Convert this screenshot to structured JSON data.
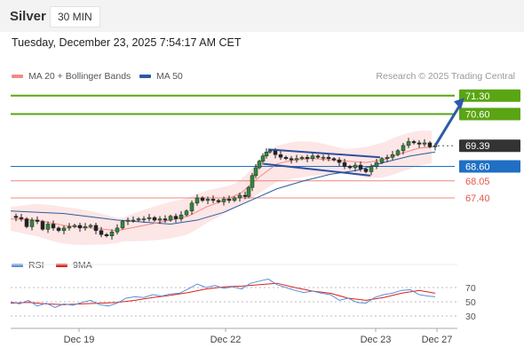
{
  "header": {
    "instrument": "Silver",
    "interval": "30 MIN",
    "datetime": "Tuesday, December 23, 2025 7:54:17 AM CET"
  },
  "legend": {
    "ma20": {
      "label": "MA 20 + Bollinger Bands",
      "color": "#f28b82"
    },
    "ma50": {
      "label": "MA 50",
      "color": "#2d5a9e"
    },
    "credit": "Research © 2025 Trading Central"
  },
  "rsi_legend": {
    "rsi": {
      "label": "RSI",
      "color": "#5b8dd9"
    },
    "ma9": {
      "label": "9MA",
      "color": "#d9221c"
    }
  },
  "chart_data": {
    "type": "line",
    "x_ticks": [
      "Dec 19",
      "Dec 22",
      "Dec 23",
      "Dec 27"
    ],
    "levels": [
      {
        "value": 71.3,
        "label": "71.30",
        "kind": "target",
        "color": "#5aa514"
      },
      {
        "value": 70.6,
        "label": "70.60",
        "kind": "target",
        "color": "#5aa514"
      },
      {
        "value": 69.39,
        "label": "69.39",
        "kind": "last",
        "color": "#333333"
      },
      {
        "value": 68.6,
        "label": "68.60",
        "kind": "pivot",
        "color": "#1f6fc4"
      },
      {
        "value": 68.05,
        "label": "68.05",
        "kind": "support",
        "color": "#e4574b"
      },
      {
        "value": 67.4,
        "label": "67.40",
        "kind": "support",
        "color": "#e4574b"
      }
    ],
    "price_range": [
      65.4,
      71.7
    ],
    "price_path": [
      [
        0,
        66.7
      ],
      [
        6,
        66.65
      ],
      [
        12,
        66.6
      ],
      [
        18,
        66.3
      ],
      [
        24,
        66.55
      ],
      [
        30,
        66.5
      ],
      [
        36,
        66.2
      ],
      [
        42,
        66.4
      ],
      [
        48,
        66.25
      ],
      [
        54,
        66.15
      ],
      [
        60,
        66.25
      ],
      [
        66,
        66.3
      ],
      [
        72,
        66.35
      ],
      [
        78,
        66.25
      ],
      [
        84,
        66.3
      ],
      [
        90,
        66.35
      ],
      [
        96,
        66.15
      ],
      [
        102,
        66.0
      ],
      [
        108,
        65.95
      ],
      [
        114,
        66.1
      ],
      [
        120,
        66.25
      ],
      [
        126,
        66.5
      ],
      [
        132,
        66.55
      ],
      [
        138,
        66.55
      ],
      [
        144,
        66.6
      ],
      [
        150,
        66.6
      ],
      [
        156,
        66.65
      ],
      [
        162,
        66.55
      ],
      [
        168,
        66.6
      ],
      [
        174,
        66.55
      ],
      [
        180,
        66.7
      ],
      [
        186,
        66.6
      ],
      [
        192,
        66.75
      ],
      [
        198,
        66.9
      ],
      [
        204,
        67.2
      ],
      [
        210,
        67.4
      ],
      [
        216,
        67.3
      ],
      [
        222,
        67.35
      ],
      [
        228,
        67.3
      ],
      [
        234,
        67.25
      ],
      [
        240,
        67.35
      ],
      [
        246,
        67.3
      ],
      [
        252,
        67.4
      ],
      [
        258,
        67.5
      ],
      [
        264,
        67.45
      ],
      [
        268,
        67.8
      ],
      [
        272,
        68.25
      ],
      [
        276,
        68.55
      ],
      [
        280,
        68.8
      ],
      [
        284,
        69.0
      ],
      [
        288,
        69.15
      ],
      [
        292,
        69.2
      ],
      [
        298,
        69.05
      ],
      [
        304,
        68.95
      ],
      [
        310,
        68.9
      ],
      [
        316,
        68.85
      ],
      [
        322,
        68.9
      ],
      [
        328,
        68.95
      ],
      [
        334,
        68.9
      ],
      [
        340,
        69.0
      ],
      [
        346,
        68.95
      ],
      [
        352,
        68.95
      ],
      [
        358,
        68.9
      ],
      [
        364,
        68.85
      ],
      [
        370,
        68.75
      ],
      [
        376,
        68.6
      ],
      [
        382,
        68.55
      ],
      [
        388,
        68.65
      ],
      [
        394,
        68.5
      ],
      [
        400,
        68.4
      ],
      [
        406,
        68.6
      ],
      [
        412,
        68.75
      ],
      [
        418,
        68.9
      ],
      [
        424,
        68.95
      ],
      [
        430,
        69.05
      ],
      [
        436,
        69.2
      ],
      [
        442,
        69.4
      ],
      [
        448,
        69.55
      ],
      [
        454,
        69.5
      ],
      [
        460,
        69.45
      ],
      [
        466,
        69.5
      ],
      [
        472,
        69.35
      ],
      [
        478,
        69.39
      ]
    ],
    "projection": [
      [
        478,
        69.39
      ],
      [
        510,
        71.15
      ]
    ],
    "ma50_path": [
      [
        0,
        66.9
      ],
      [
        60,
        66.8
      ],
      [
        120,
        66.55
      ],
      [
        180,
        66.4
      ],
      [
        210,
        66.55
      ],
      [
        240,
        66.85
      ],
      [
        270,
        67.3
      ],
      [
        300,
        67.75
      ],
      [
        330,
        68.05
      ],
      [
        360,
        68.3
      ],
      [
        390,
        68.45
      ],
      [
        420,
        68.75
      ],
      [
        450,
        69.0
      ],
      [
        478,
        69.15
      ]
    ],
    "ma20_path": [
      [
        0,
        66.6
      ],
      [
        30,
        66.55
      ],
      [
        60,
        66.35
      ],
      [
        90,
        66.25
      ],
      [
        120,
        66.15
      ],
      [
        150,
        66.35
      ],
      [
        180,
        66.55
      ],
      [
        200,
        66.7
      ],
      [
        220,
        67.05
      ],
      [
        240,
        67.3
      ],
      [
        260,
        67.6
      ],
      [
        280,
        68.2
      ],
      [
        300,
        68.7
      ],
      [
        320,
        68.85
      ],
      [
        340,
        68.9
      ],
      [
        360,
        68.85
      ],
      [
        380,
        68.8
      ],
      [
        400,
        68.75
      ],
      [
        420,
        68.85
      ],
      [
        440,
        69.1
      ],
      [
        460,
        69.3
      ],
      [
        478,
        69.35
      ]
    ],
    "channel": [
      {
        "from": [
          290,
          69.25
        ],
        "to": [
          416,
          68.95
        ]
      },
      {
        "from": [
          285,
          68.7
        ],
        "to": [
          405,
          68.25
        ]
      }
    ],
    "rsi": {
      "levels": [
        70,
        50,
        30
      ],
      "range": [
        15,
        90
      ],
      "rsi_path": [
        [
          0,
          50
        ],
        [
          10,
          47
        ],
        [
          20,
          52
        ],
        [
          30,
          44
        ],
        [
          40,
          48
        ],
        [
          50,
          42
        ],
        [
          60,
          47
        ],
        [
          70,
          45
        ],
        [
          80,
          49
        ],
        [
          90,
          52
        ],
        [
          100,
          46
        ],
        [
          110,
          44
        ],
        [
          120,
          48
        ],
        [
          130,
          55
        ],
        [
          140,
          57
        ],
        [
          150,
          56
        ],
        [
          160,
          60
        ],
        [
          170,
          58
        ],
        [
          180,
          61
        ],
        [
          190,
          62
        ],
        [
          200,
          68
        ],
        [
          210,
          75
        ],
        [
          220,
          70
        ],
        [
          230,
          73
        ],
        [
          240,
          69
        ],
        [
          250,
          71
        ],
        [
          260,
          68
        ],
        [
          270,
          76
        ],
        [
          280,
          79
        ],
        [
          290,
          82
        ],
        [
          300,
          74
        ],
        [
          310,
          70
        ],
        [
          320,
          66
        ],
        [
          330,
          63
        ],
        [
          340,
          65
        ],
        [
          350,
          62
        ],
        [
          360,
          60
        ],
        [
          370,
          52
        ],
        [
          380,
          55
        ],
        [
          390,
          49
        ],
        [
          400,
          48
        ],
        [
          410,
          56
        ],
        [
          420,
          60
        ],
        [
          430,
          62
        ],
        [
          440,
          66
        ],
        [
          450,
          67
        ],
        [
          460,
          60
        ],
        [
          470,
          58
        ],
        [
          478,
          57
        ]
      ],
      "ma9_path": [
        [
          0,
          48
        ],
        [
          20,
          49
        ],
        [
          40,
          47
        ],
        [
          60,
          46
        ],
        [
          80,
          47
        ],
        [
          100,
          48
        ],
        [
          120,
          49
        ],
        [
          140,
          52
        ],
        [
          160,
          56
        ],
        [
          180,
          59
        ],
        [
          200,
          63
        ],
        [
          220,
          68
        ],
        [
          240,
          71
        ],
        [
          260,
          72
        ],
        [
          280,
          74
        ],
        [
          300,
          76
        ],
        [
          320,
          70
        ],
        [
          340,
          65
        ],
        [
          360,
          62
        ],
        [
          380,
          55
        ],
        [
          400,
          52
        ],
        [
          420,
          56
        ],
        [
          440,
          62
        ],
        [
          460,
          66
        ],
        [
          478,
          62
        ]
      ]
    }
  }
}
